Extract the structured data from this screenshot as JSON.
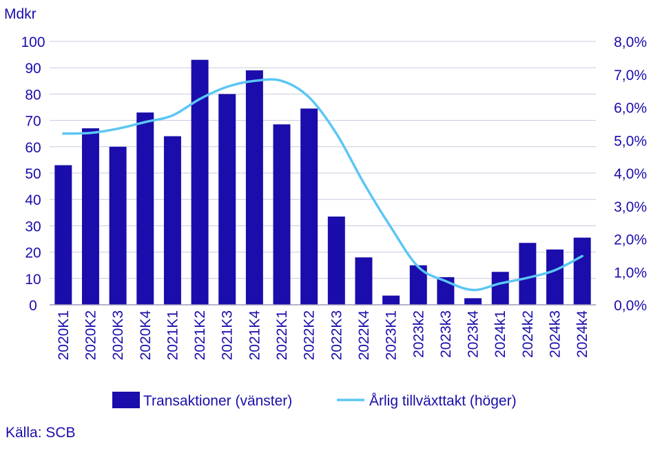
{
  "chart_data": {
    "type": "bar",
    "y_unit_label": "Mdkr",
    "categories": [
      "2020K1",
      "2020K2",
      "2020K3",
      "2020K4",
      "2021K1",
      "2021K2",
      "2021K3",
      "2021K4",
      "2022K1",
      "2022K2",
      "2022K3",
      "2022K4",
      "2023K1",
      "2023k2",
      "2023k3",
      "2023k4",
      "2024k1",
      "2024k2",
      "2024k3",
      "2024k4"
    ],
    "series": [
      {
        "name": "Transaktioner (vänster)",
        "kind": "bar",
        "axis": "left",
        "color": "#1a0dab",
        "values": [
          53,
          67,
          60,
          73,
          64,
          93,
          80,
          89,
          68.5,
          74.5,
          33.5,
          18,
          3.5,
          15,
          10.5,
          2.5,
          12.5,
          23.5,
          21,
          25.5
        ]
      },
      {
        "name": "Årlig tillväxttakt (höger)",
        "kind": "line",
        "axis": "right",
        "color": "#5bc6f5",
        "values": [
          5.2,
          5.22,
          5.35,
          5.55,
          5.75,
          6.25,
          6.62,
          6.8,
          6.8,
          6.3,
          5.2,
          3.7,
          2.35,
          1.15,
          0.72,
          0.45,
          0.65,
          0.82,
          1.05,
          1.48
        ]
      }
    ],
    "y_left": {
      "min": 0,
      "max": 100,
      "ticks": [
        "0",
        "10",
        "20",
        "30",
        "40",
        "50",
        "60",
        "70",
        "80",
        "90",
        "100"
      ]
    },
    "y_right": {
      "min": 0,
      "max": 8,
      "ticks": [
        "0,0%",
        "1,0%",
        "2,0%",
        "3,0%",
        "4,0%",
        "5,0%",
        "6,0%",
        "7,0%",
        "8,0%"
      ]
    },
    "grid": true,
    "legend_position": "bottom"
  },
  "source": "Källa: SCB"
}
